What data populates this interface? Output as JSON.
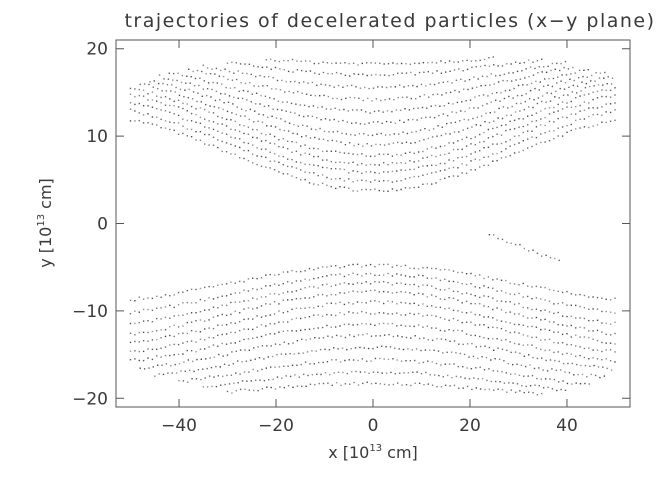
{
  "chart_data": {
    "type": "scatter",
    "title": "trajectories of decelerated particles (x−y plane)",
    "xlabel": {
      "prefix": "x [10",
      "exp": "13",
      "suffix": " cm]"
    },
    "ylabel": {
      "prefix": "y [10",
      "exp": "13",
      "suffix": " cm]"
    },
    "xlim": [
      -53,
      53
    ],
    "ylim": [
      -21,
      21
    ],
    "x_ticks": [
      {
        "value": -40,
        "label": "−40"
      },
      {
        "value": -20,
        "label": "−20"
      },
      {
        "value": 0,
        "label": "0"
      },
      {
        "value": 20,
        "label": "20"
      },
      {
        "value": 40,
        "label": "40"
      }
    ],
    "y_ticks": [
      {
        "value": 20,
        "label": "20"
      },
      {
        "value": 10,
        "label": "10"
      },
      {
        "value": 0,
        "label": "0"
      },
      {
        "value": -10,
        "label": "−10"
      },
      {
        "value": -20,
        "label": "−20"
      }
    ],
    "grid": false,
    "legend": "none",
    "marker_color": "#222222",
    "series": [
      {
        "band": "upper",
        "trajectories": [
          {
            "x0": -50,
            "x1": 50,
            "y_center": 3.8,
            "y_edge": 12.5
          },
          {
            "x0": -50,
            "x1": 50,
            "y_center": 4.8,
            "y_edge": 13.5
          },
          {
            "x0": -50,
            "x1": 50,
            "y_center": 5.8,
            "y_edge": 14.4
          },
          {
            "x0": -50,
            "x1": 50,
            "y_center": 6.8,
            "y_edge": 15.3
          },
          {
            "x0": -50,
            "x1": 50,
            "y_center": 7.8,
            "y_edge": 16.0
          },
          {
            "x0": -48,
            "x1": 50,
            "y_center": 9.0,
            "y_edge": 16.7
          },
          {
            "x0": -46,
            "x1": 50,
            "y_center": 10.2,
            "y_edge": 17.3
          },
          {
            "x0": -44,
            "x1": 48,
            "y_center": 11.5,
            "y_edge": 17.9
          },
          {
            "x0": -42,
            "x1": 45,
            "y_center": 12.8,
            "y_edge": 18.5
          },
          {
            "x0": -38,
            "x1": 42,
            "y_center": 14.2,
            "y_edge": 19.0
          },
          {
            "x0": -35,
            "x1": 40,
            "y_center": 15.6,
            "y_edge": 19.4
          },
          {
            "x0": -30,
            "x1": 35,
            "y_center": 17.0,
            "y_edge": 19.8
          },
          {
            "x0": -22,
            "x1": 25,
            "y_center": 18.3,
            "y_edge": 20.0
          }
        ]
      },
      {
        "band": "lower",
        "trajectories": [
          {
            "x0": -50,
            "x1": 50,
            "y_center": -4.8,
            "y_edge": -9.0
          },
          {
            "x0": -50,
            "x1": 50,
            "y_center": -5.8,
            "y_edge": -10.5
          },
          {
            "x0": -50,
            "x1": 50,
            "y_center": -6.8,
            "y_edge": -11.8
          },
          {
            "x0": -50,
            "x1": 50,
            "y_center": -7.8,
            "y_edge": -13.0
          },
          {
            "x0": -50,
            "x1": 50,
            "y_center": -9.0,
            "y_edge": -14.0
          },
          {
            "x0": -50,
            "x1": 50,
            "y_center": -10.2,
            "y_edge": -15.0
          },
          {
            "x0": -50,
            "x1": 50,
            "y_center": -11.5,
            "y_edge": -16.0
          },
          {
            "x0": -48,
            "x1": 50,
            "y_center": -12.8,
            "y_edge": -17.0
          },
          {
            "x0": -45,
            "x1": 48,
            "y_center": -14.2,
            "y_edge": -18.0
          },
          {
            "x0": -40,
            "x1": 45,
            "y_center": -15.6,
            "y_edge": -19.0
          },
          {
            "x0": -35,
            "x1": 40,
            "y_center": -17.0,
            "y_edge": -19.8
          },
          {
            "x0": -30,
            "x1": 35,
            "y_center": -18.3,
            "y_edge": -20.3
          }
        ]
      },
      {
        "band": "isolated",
        "trajectories": [
          {
            "x0": 24,
            "x1": 39,
            "y_start": -1.2,
            "y_end": -4.5
          }
        ]
      }
    ]
  }
}
